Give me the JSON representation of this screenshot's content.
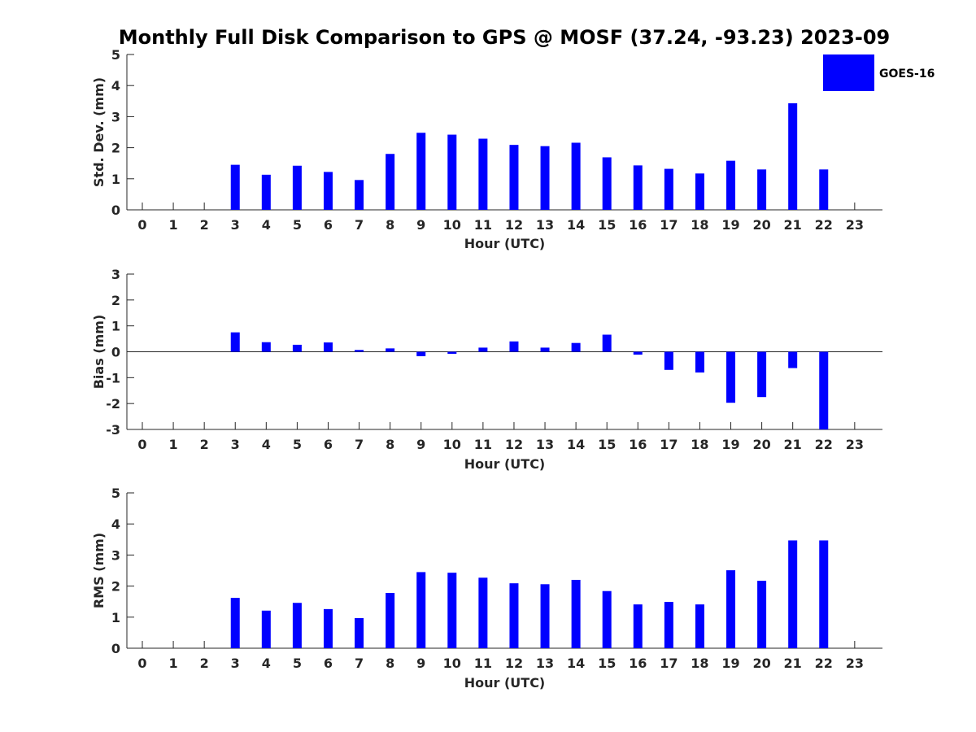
{
  "colors": {
    "bar": "#0000ff",
    "axis": "#262626",
    "background": "#ffffff"
  },
  "legend": {
    "label": "GOES-16"
  },
  "chart_data": {
    "title": "Monthly Full Disk Comparison to GPS @ MOSF (37.24, -93.23) 2023-09",
    "legend_location": "top-right",
    "grid": false,
    "panels": [
      {
        "type": "bar",
        "xlabel": "Hour (UTC)",
        "ylabel": "Std. Dev. (mm)",
        "ylim": [
          0,
          5
        ],
        "yticks": [
          "0",
          "1",
          "2",
          "3",
          "4",
          "5"
        ],
        "categories": [
          "0",
          "1",
          "2",
          "3",
          "4",
          "5",
          "6",
          "7",
          "8",
          "9",
          "10",
          "11",
          "12",
          "13",
          "14",
          "15",
          "16",
          "17",
          "18",
          "19",
          "20",
          "21",
          "22",
          "23"
        ],
        "series": [
          {
            "name": "GOES-16",
            "values": [
              null,
              null,
              null,
              1.45,
              1.13,
              1.42,
              1.22,
              0.96,
              1.8,
              2.48,
              2.42,
              2.29,
              2.09,
              2.05,
              2.16,
              1.69,
              1.43,
              1.32,
              1.17,
              1.58,
              1.3,
              3.43,
              1.3,
              null
            ]
          }
        ]
      },
      {
        "type": "bar",
        "xlabel": "Hour (UTC)",
        "ylabel": "Bias (mm)",
        "ylim": [
          -3,
          3
        ],
        "yticks": [
          "-3",
          "-2",
          "-1",
          "0",
          "1",
          "2",
          "3"
        ],
        "categories": [
          "0",
          "1",
          "2",
          "3",
          "4",
          "5",
          "6",
          "7",
          "8",
          "9",
          "10",
          "11",
          "12",
          "13",
          "14",
          "15",
          "16",
          "17",
          "18",
          "19",
          "20",
          "21",
          "22",
          "23"
        ],
        "series": [
          {
            "name": "GOES-16",
            "values": [
              null,
              null,
              null,
              0.75,
              0.37,
              0.27,
              0.36,
              0.07,
              0.13,
              -0.17,
              -0.08,
              0.16,
              0.4,
              0.16,
              0.34,
              0.66,
              -0.11,
              -0.7,
              -0.8,
              -1.97,
              -1.75,
              -0.63,
              -3.0,
              null
            ]
          }
        ]
      },
      {
        "type": "bar",
        "xlabel": "Hour (UTC)",
        "ylabel": "RMS (mm)",
        "ylim": [
          0,
          5
        ],
        "yticks": [
          "0",
          "1",
          "2",
          "3",
          "4",
          "5"
        ],
        "categories": [
          "0",
          "1",
          "2",
          "3",
          "4",
          "5",
          "6",
          "7",
          "8",
          "9",
          "10",
          "11",
          "12",
          "13",
          "14",
          "15",
          "16",
          "17",
          "18",
          "19",
          "20",
          "21",
          "22",
          "23"
        ],
        "series": [
          {
            "name": "GOES-16",
            "values": [
              null,
              null,
              null,
              1.62,
              1.21,
              1.46,
              1.26,
              0.97,
              1.78,
              2.45,
              2.43,
              2.27,
              2.09,
              2.06,
              2.2,
              1.84,
              1.41,
              1.49,
              1.41,
              2.51,
              2.17,
              3.47,
              3.47,
              null
            ]
          }
        ]
      }
    ]
  }
}
